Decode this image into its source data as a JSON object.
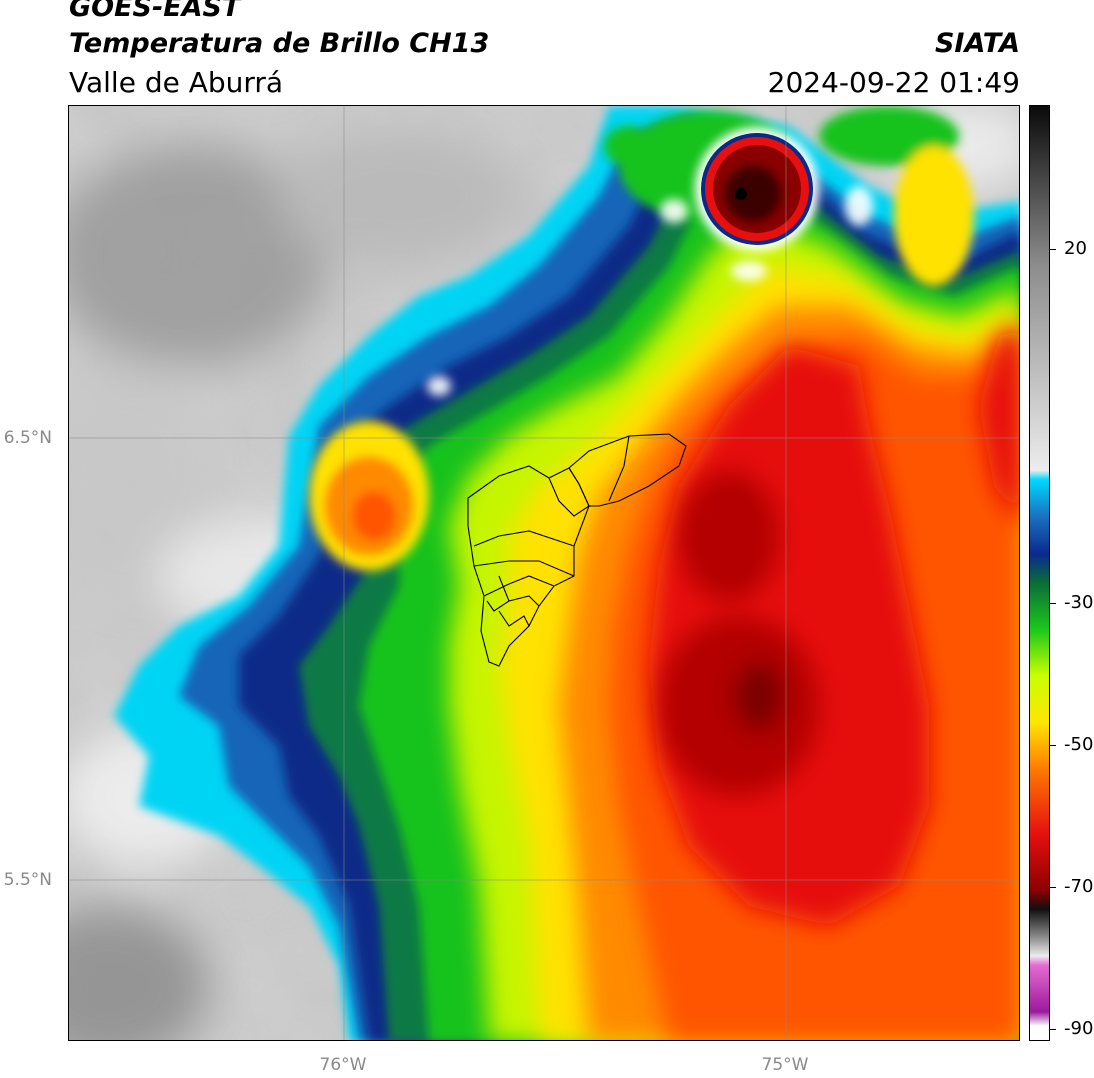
{
  "header": {
    "satellite": "GOES-EAST",
    "product": "Temperatura de Brillo CH13",
    "region": "Valle de Aburrá",
    "organization": "SIATA",
    "datetime": "2024-09-22 01:49"
  },
  "axes": {
    "lat_ticks": [
      "6.5°N",
      "5.5°N"
    ],
    "lon_ticks": [
      "76°W",
      "75°W"
    ]
  },
  "colorbar": {
    "ticks": [
      "20",
      "-30",
      "-50",
      "-70",
      "-90"
    ],
    "colors": {
      "white_min": "#ffffff",
      "magenta": "#9b1a9b",
      "pink": "#e56ad1",
      "dark_black": "#101010",
      "dark_red": "#8b0000",
      "red": "#e51010",
      "orange": "#ff7a00",
      "yellow": "#ffe600",
      "lime": "#c8ff00",
      "green": "#1ac81a",
      "dark_green": "#0b6b3a",
      "navy": "#0a2a8a",
      "blue": "#1a70c0",
      "cyan": "#00d8ff",
      "light_gray": "#ececec",
      "gray": "#8c8c8c",
      "black_top": "#0a0a0a"
    }
  }
}
